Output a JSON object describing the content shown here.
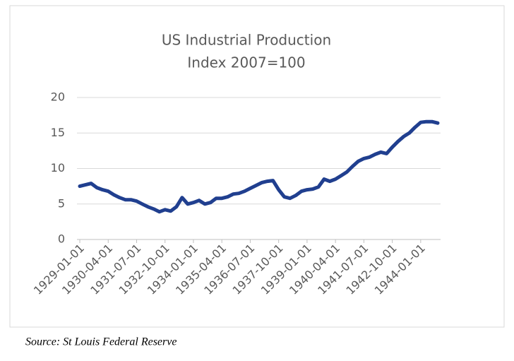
{
  "chart_data": {
    "type": "line",
    "title": "US Industrial Production",
    "subtitle": "Index 2007=100",
    "source": "Source: St Louis Federal Reserve",
    "categories": [
      "1929-01-01",
      null,
      null,
      null,
      null,
      "1930-04-01",
      null,
      null,
      null,
      null,
      "1931-07-01",
      null,
      null,
      null,
      null,
      "1932-10-01",
      null,
      null,
      null,
      null,
      "1934-01-01",
      null,
      null,
      null,
      null,
      "1935-04-01",
      null,
      null,
      null,
      null,
      "1936-07-01",
      null,
      null,
      null,
      null,
      "1937-10-01",
      null,
      null,
      null,
      null,
      "1939-01-01",
      null,
      null,
      null,
      null,
      "1940-04-01",
      null,
      null,
      null,
      null,
      "1941-07-01",
      null,
      null,
      null,
      null,
      "1942-10-01",
      null,
      null,
      null,
      null,
      "1944-01-01",
      null,
      null,
      null
    ],
    "series": [
      {
        "name": "US Industrial Production",
        "color": "#203f8f",
        "values": [
          7.5,
          7.7,
          7.9,
          7.3,
          7.0,
          6.8,
          6.3,
          5.9,
          5.6,
          5.6,
          5.4,
          5.0,
          4.6,
          4.3,
          3.9,
          4.2,
          4.0,
          4.6,
          5.9,
          5.0,
          5.2,
          5.5,
          5.0,
          5.2,
          5.8,
          5.8,
          6.0,
          6.4,
          6.5,
          6.8,
          7.2,
          7.6,
          8.0,
          8.2,
          8.3,
          7.0,
          6.0,
          5.8,
          6.2,
          6.8,
          7.0,
          7.1,
          7.4,
          8.5,
          8.2,
          8.5,
          9.0,
          9.5,
          10.3,
          11.0,
          11.4,
          11.6,
          12.0,
          12.3,
          12.1,
          13.0,
          13.8,
          14.5,
          15.0,
          15.8,
          16.5,
          16.6,
          16.6,
          16.4
        ]
      }
    ],
    "ylim": [
      0,
      20
    ],
    "yticks": [
      0,
      5,
      10,
      15,
      20
    ],
    "grid": true
  }
}
